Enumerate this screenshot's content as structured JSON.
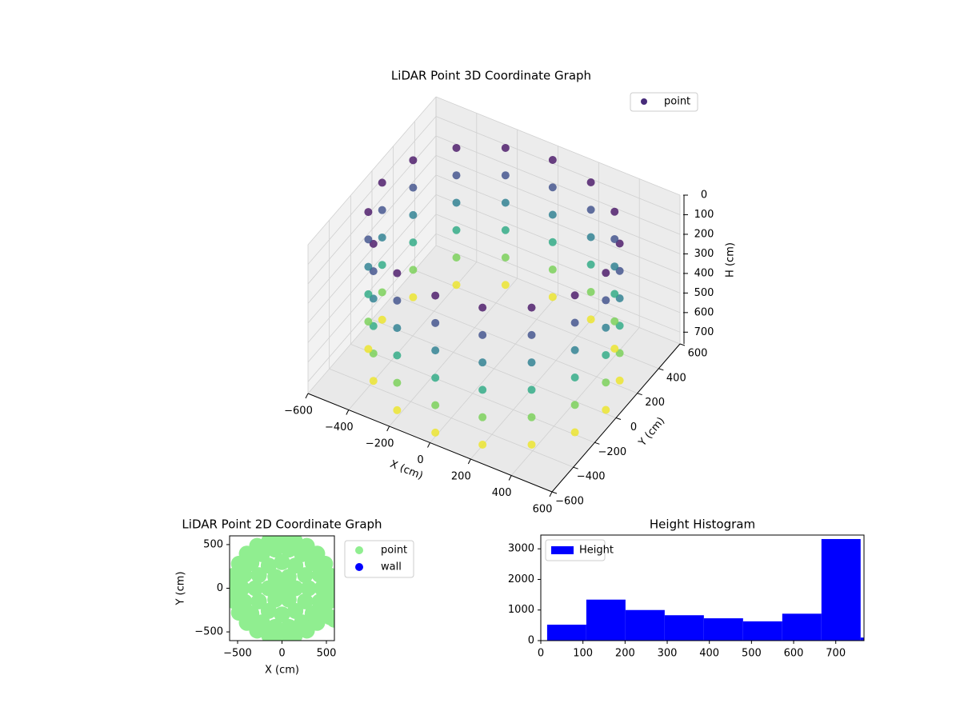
{
  "chart_data": [
    {
      "type": "scatter3d",
      "title": "LiDAR Point 3D Coordinate Graph",
      "xlabel": "X (cm)",
      "ylabel": "Y (cm)",
      "zlabel": "H (cm)",
      "xlim": [
        -600,
        600
      ],
      "ylim": [
        -600,
        600
      ],
      "zlim": [
        0,
        760
      ],
      "zinverted": true,
      "colormap": "viridis",
      "grid": true,
      "legend": "upper right",
      "xticks": [
        {
          "value": -600,
          "label": "−600"
        },
        {
          "value": -400,
          "label": "−400"
        },
        {
          "value": -200,
          "label": "−200"
        },
        0,
        200,
        400,
        600
      ],
      "yticks": [
        {
          "value": -600,
          "label": "−600"
        },
        {
          "value": -400,
          "label": "−400"
        },
        {
          "value": -200,
          "label": "−200"
        },
        0,
        200,
        400,
        600
      ],
      "zticks": [
        0,
        100,
        200,
        300,
        400,
        500,
        600,
        700
      ],
      "series": [
        {
          "name": "point",
          "color": "#472c7a",
          "x": [
            550,
            508,
            389,
            210,
            0,
            -210,
            -389,
            -508,
            -550,
            -508,
            -389,
            -210,
            0,
            210,
            389,
            508,
            550,
            508,
            389,
            210,
            0,
            -210,
            -389,
            -508,
            -550,
            -508,
            -389,
            -210,
            0,
            210,
            389,
            508,
            550,
            508,
            389,
            210,
            0,
            -210,
            -389,
            -508,
            -550,
            -508,
            -389,
            -210,
            0,
            210,
            389,
            508,
            550,
            508,
            389,
            210,
            0,
            -210,
            -389,
            -508,
            -550,
            -508,
            -389,
            -210,
            0,
            210,
            389,
            508,
            550,
            508,
            389,
            210,
            0,
            -210,
            -389,
            -508,
            -550,
            -508,
            -389,
            -210,
            0,
            210,
            389,
            508,
            550,
            508,
            389,
            210,
            0,
            -210,
            -389,
            -508,
            -550,
            -508,
            -389,
            -210,
            0,
            210,
            389,
            508
          ],
          "y": [
            0,
            210,
            389,
            508,
            550,
            508,
            389,
            210,
            0,
            -210,
            -389,
            -508,
            -550,
            -508,
            -389,
            -210,
            0,
            210,
            389,
            508,
            550,
            508,
            389,
            210,
            0,
            -210,
            -389,
            -508,
            -550,
            -508,
            -389,
            -210,
            0,
            210,
            389,
            508,
            550,
            508,
            389,
            210,
            0,
            -210,
            -389,
            -508,
            -550,
            -508,
            -389,
            -210,
            0,
            210,
            389,
            508,
            550,
            508,
            389,
            210,
            0,
            -210,
            -389,
            -508,
            -550,
            -508,
            -389,
            -210,
            0,
            210,
            389,
            508,
            550,
            508,
            389,
            210,
            0,
            -210,
            -389,
            -508,
            -550,
            -508,
            -389,
            -210,
            0,
            210,
            389,
            508,
            550,
            508,
            389,
            210,
            0,
            -210,
            -389,
            -508,
            -550,
            -508,
            -389,
            -210
          ],
          "z": [
            40,
            40,
            40,
            40,
            40,
            40,
            40,
            40,
            40,
            40,
            40,
            40,
            40,
            40,
            40,
            40,
            180,
            180,
            180,
            180,
            180,
            180,
            180,
            180,
            180,
            180,
            180,
            180,
            180,
            180,
            180,
            180,
            320,
            320,
            320,
            320,
            320,
            320,
            320,
            320,
            320,
            320,
            320,
            320,
            320,
            320,
            320,
            320,
            460,
            460,
            460,
            460,
            460,
            460,
            460,
            460,
            460,
            460,
            460,
            460,
            460,
            460,
            460,
            460,
            600,
            600,
            600,
            600,
            600,
            600,
            600,
            600,
            600,
            600,
            600,
            600,
            600,
            600,
            600,
            600,
            740,
            740,
            740,
            740,
            740,
            740,
            740,
            740,
            740,
            740,
            740,
            740,
            740,
            740,
            740,
            740
          ]
        }
      ]
    },
    {
      "type": "scatter",
      "title": "LiDAR Point 2D Coordinate Graph",
      "xlabel": "X (cm)",
      "ylabel": "Y (cm)",
      "xlim": [
        -590,
        590
      ],
      "ylim": [
        -600,
        600
      ],
      "legend": "outside right",
      "xticks": [
        {
          "value": -500,
          "label": "−500"
        },
        0,
        500
      ],
      "yticks": [
        {
          "value": -500,
          "label": "−500"
        },
        0,
        500
      ],
      "series": [
        {
          "name": "point",
          "color": "#90ee90",
          "x": [
            0,
            150,
            75,
            -75,
            -150,
            -75,
            75,
            300,
            260,
            150,
            0,
            -150,
            -260,
            -300,
            -260,
            -150,
            0,
            150,
            260,
            450,
            423,
            345,
            225,
            78,
            -78,
            -225,
            -345,
            -423,
            -450,
            -423,
            -345,
            -225,
            -78,
            78,
            225,
            345,
            423,
            560,
            541,
            485,
            396,
            280,
            145,
            0,
            -145,
            -280,
            -396,
            -485,
            -541,
            -560,
            -541,
            -485,
            -396,
            -280,
            -145,
            0,
            145,
            280,
            396,
            485,
            541,
            480,
            540,
            590
          ],
          "y": [
            0,
            0,
            130,
            130,
            0,
            -130,
            -130,
            0,
            150,
            260,
            300,
            260,
            150,
            0,
            -150,
            -260,
            -300,
            -260,
            -150,
            0,
            154,
            289,
            390,
            443,
            443,
            390,
            289,
            154,
            0,
            -154,
            -289,
            -390,
            -443,
            -443,
            -390,
            -289,
            -154,
            0,
            145,
            280,
            396,
            485,
            541,
            560,
            541,
            485,
            396,
            280,
            145,
            0,
            -145,
            -280,
            -396,
            -485,
            -541,
            -560,
            -541,
            -485,
            -396,
            -280,
            -145,
            -300,
            -330,
            -360
          ]
        },
        {
          "name": "wall",
          "color": "#0000ff",
          "x": [],
          "y": []
        }
      ]
    },
    {
      "type": "histogram",
      "title": "Height Histogram",
      "xlim": [
        0,
        767
      ],
      "ylim": [
        0,
        3450
      ],
      "xticks": [
        0,
        100,
        200,
        300,
        400,
        500,
        600,
        700
      ],
      "yticks": [
        0,
        1000,
        2000,
        3000
      ],
      "legend": "upper left",
      "bins": [
        15,
        108,
        201,
        294,
        387,
        480,
        573,
        666,
        759,
        852
      ],
      "series": [
        {
          "name": "Height",
          "color": "#0000ff",
          "values": [
            520,
            1340,
            1000,
            830,
            730,
            630,
            880,
            3320,
            100
          ]
        }
      ]
    }
  ]
}
